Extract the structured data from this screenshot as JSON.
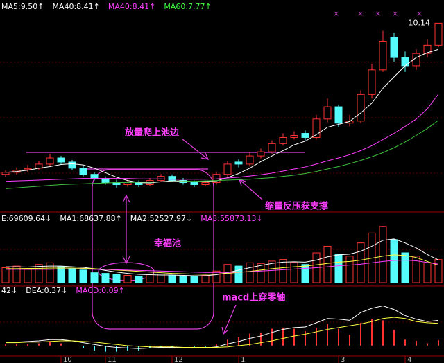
{
  "annotations": [
    "放量爬上池边",
    "缩量反压获支撑",
    "幸福池",
    "macd上穿零轴"
  ],
  "chart_data": [
    {
      "type": "candlestick",
      "up_color": "#ff3232",
      "down_color": "#54fcfc",
      "categories": [
        null,
        null,
        null,
        null,
        null,
        "10",
        null,
        null,
        null,
        "11",
        null,
        null,
        null,
        null,
        null,
        "12",
        null,
        null,
        null,
        null,
        null,
        "1",
        null,
        null,
        null,
        null,
        null,
        null,
        null,
        null,
        "3",
        null,
        null,
        null,
        null,
        null,
        "4",
        null,
        null,
        null
      ],
      "open": [
        6.45,
        6.5,
        6.58,
        6.6,
        6.7,
        6.85,
        6.75,
        6.6,
        6.45,
        6.35,
        6.25,
        6.2,
        6.25,
        6.2,
        6.3,
        6.4,
        6.3,
        6.25,
        6.2,
        6.25,
        6.45,
        6.75,
        6.7,
        6.9,
        7.0,
        7.2,
        7.35,
        7.45,
        7.35,
        7.8,
        8.1,
        7.7,
        7.75,
        8.4,
        9.0,
        9.8,
        9.3,
        9.1,
        9.4,
        9.6
      ],
      "high": [
        6.55,
        6.62,
        6.68,
        6.78,
        6.95,
        6.9,
        6.8,
        6.65,
        6.5,
        6.4,
        6.32,
        6.32,
        6.3,
        6.36,
        6.46,
        6.45,
        6.36,
        6.3,
        6.3,
        6.52,
        6.78,
        6.82,
        6.98,
        7.08,
        7.28,
        7.45,
        7.5,
        7.52,
        7.9,
        8.3,
        8.15,
        7.9,
        8.5,
        9.15,
        9.95,
        9.9,
        9.45,
        9.5,
        9.75,
        10.14
      ],
      "low": [
        6.38,
        6.44,
        6.5,
        6.55,
        6.65,
        6.7,
        6.55,
        6.4,
        6.3,
        6.2,
        6.12,
        6.15,
        6.14,
        6.16,
        6.26,
        6.26,
        6.2,
        6.14,
        6.16,
        6.2,
        6.4,
        6.62,
        6.64,
        6.84,
        6.95,
        7.15,
        7.3,
        7.28,
        7.3,
        7.72,
        7.6,
        7.62,
        7.7,
        8.3,
        8.95,
        9.2,
        8.95,
        9.0,
        9.3,
        9.55
      ],
      "close": [
        6.5,
        6.55,
        6.6,
        6.7,
        6.85,
        6.75,
        6.6,
        6.45,
        6.35,
        6.25,
        6.2,
        6.25,
        6.2,
        6.3,
        6.4,
        6.3,
        6.25,
        6.2,
        6.25,
        6.45,
        6.7,
        6.7,
        6.9,
        7.0,
        7.2,
        7.35,
        7.4,
        7.35,
        7.8,
        8.1,
        7.7,
        7.75,
        8.4,
        9.0,
        9.7,
        9.3,
        9.1,
        9.4,
        9.6,
        10.14
      ],
      "ylim": [
        5.6,
        10.4
      ],
      "legend": [
        {
          "text": "MA5:9.50↑",
          "color": "#ffffff"
        },
        {
          "text": "MA40:8.41↑",
          "color": "#ffffff"
        },
        {
          "text": "MA40:8.41↑",
          "color": "#ff40ff"
        },
        {
          "text": "MA60:7.77↑",
          "color": "#40ff40"
        }
      ],
      "series": [
        {
          "color": "#ffffff",
          "values": [
            6.5,
            6.52,
            6.55,
            6.6,
            6.64,
            6.69,
            6.71,
            6.68,
            6.6,
            6.49,
            6.38,
            6.3,
            6.25,
            6.24,
            6.27,
            6.29,
            6.29,
            6.27,
            6.28,
            6.29,
            6.37,
            6.47,
            6.6,
            6.76,
            6.9,
            7.03,
            7.17,
            7.26,
            7.42,
            7.6,
            7.67,
            7.74,
            7.95,
            8.19,
            8.55,
            8.83,
            9.1,
            9.3,
            9.42,
            9.5
          ]
        },
        {
          "color": "#ff40ff",
          "values": [
            6.28,
            6.29,
            6.3,
            6.31,
            6.32,
            6.33,
            6.34,
            6.35,
            6.35,
            6.35,
            6.35,
            6.35,
            6.34,
            6.34,
            6.34,
            6.33,
            6.33,
            6.33,
            6.33,
            6.34,
            6.36,
            6.38,
            6.41,
            6.44,
            6.48,
            6.53,
            6.58,
            6.63,
            6.7,
            6.78,
            6.85,
            6.93,
            7.03,
            7.15,
            7.3,
            7.45,
            7.62,
            7.8,
            8.05,
            8.41
          ]
        },
        {
          "color": "#40c040",
          "values": [
            6.1,
            6.12,
            6.14,
            6.16,
            6.18,
            6.2,
            6.21,
            6.22,
            6.23,
            6.24,
            6.25,
            6.25,
            6.26,
            6.26,
            6.27,
            6.27,
            6.28,
            6.28,
            6.29,
            6.3,
            6.31,
            6.32,
            6.33,
            6.35,
            6.37,
            6.4,
            6.43,
            6.47,
            6.52,
            6.58,
            6.64,
            6.71,
            6.79,
            6.88,
            6.98,
            7.1,
            7.24,
            7.4,
            7.57,
            7.77
          ]
        }
      ]
    },
    {
      "type": "bar",
      "ylim": [
        0,
        180000
      ],
      "values": [
        45000,
        50000,
        40000,
        55000,
        60000,
        48000,
        42000,
        38000,
        30000,
        28000,
        25000,
        22000,
        20000,
        24000,
        26000,
        22000,
        20000,
        18000,
        22000,
        35000,
        55000,
        50000,
        60000,
        58000,
        65000,
        70000,
        62000,
        55000,
        90000,
        110000,
        85000,
        80000,
        120000,
        150000,
        170000,
        130000,
        90000,
        80000,
        60000,
        69609.64
      ],
      "legend": [
        {
          "text": "E:69609.64↓",
          "color": "#ffffff"
        },
        {
          "text": "MA1:68637.88↑",
          "color": "#ffffff"
        },
        {
          "text": "MA2:52527.97↓",
          "color": "#ffffff"
        },
        {
          "text": "MA3:55873.13↓",
          "color": "#ff40ff"
        }
      ],
      "series": [
        {
          "color": "#ffffff",
          "values": [
            48000,
            48000,
            47000,
            49000,
            50000,
            50000,
            48000,
            46000,
            42000,
            37000,
            32000,
            28000,
            25000,
            24000,
            23000,
            23000,
            22000,
            21000,
            21000,
            24000,
            30000,
            38000,
            45000,
            52000,
            58000,
            62000,
            63000,
            62000,
            68000,
            78000,
            84000,
            86000,
            95000,
            110000,
            128000,
            132000,
            120000,
            105000,
            85000,
            68637.88
          ]
        },
        {
          "color": "#ffff40",
          "values": [
            42000,
            42000,
            43000,
            43000,
            44000,
            44000,
            44000,
            43000,
            42000,
            40000,
            38000,
            36000,
            34000,
            32000,
            30000,
            28000,
            27000,
            26000,
            25000,
            26000,
            28000,
            31000,
            34000,
            38000,
            42000,
            45000,
            48000,
            50000,
            54000,
            58000,
            62000,
            64000,
            68000,
            74000,
            80000,
            84000,
            82000,
            76000,
            64000,
            52527.97
          ]
        },
        {
          "color": "#ff40ff",
          "values": [
            40000,
            40000,
            40000,
            40000,
            40000,
            41000,
            41000,
            41000,
            40000,
            40000,
            39000,
            38000,
            37000,
            36000,
            35000,
            34000,
            33000,
            32000,
            31000,
            31000,
            31000,
            32000,
            33000,
            35000,
            37000,
            39000,
            41000,
            43000,
            45000,
            48000,
            51000,
            53000,
            56000,
            60000,
            64000,
            67000,
            68000,
            66000,
            61000,
            55873.13
          ]
        }
      ]
    },
    {
      "type": "line",
      "ylim": [
        -0.15,
        0.85
      ],
      "legend": [
        {
          "text": "42↓",
          "color": "#ffffff"
        },
        {
          "text": "DEA:0.37↓",
          "color": "#ffffff"
        },
        {
          "text": "MACD:0.09↑",
          "color": "#ff40ff"
        }
      ],
      "series": [
        {
          "color": "#ffffff",
          "values": [
            0.06,
            0.06,
            0.07,
            0.08,
            0.1,
            0.1,
            0.08,
            0.05,
            0.02,
            -0.01,
            -0.03,
            -0.04,
            -0.05,
            -0.04,
            -0.03,
            -0.03,
            -0.03,
            -0.04,
            -0.04,
            -0.02,
            0.03,
            0.07,
            0.12,
            0.16,
            0.22,
            0.27,
            0.3,
            0.31,
            0.38,
            0.45,
            0.44,
            0.42,
            0.55,
            0.62,
            0.66,
            0.6,
            0.5,
            0.44,
            0.4,
            0.42
          ]
        },
        {
          "color": "#ffff40",
          "values": [
            0.05,
            0.05,
            0.06,
            0.06,
            0.07,
            0.08,
            0.08,
            0.07,
            0.06,
            0.04,
            0.02,
            0.0,
            -0.01,
            -0.02,
            -0.02,
            -0.02,
            -0.03,
            -0.03,
            -0.03,
            -0.03,
            -0.02,
            0.0,
            0.02,
            0.05,
            0.08,
            0.12,
            0.16,
            0.19,
            0.23,
            0.27,
            0.3,
            0.33,
            0.36,
            0.4,
            0.45,
            0.47,
            0.45,
            0.4,
            0.38,
            0.37
          ]
        }
      ],
      "histogram": [
        0.02,
        0.02,
        0.02,
        0.04,
        0.06,
        0.04,
        0,
        -0.04,
        -0.08,
        -0.1,
        -0.1,
        -0.08,
        -0.08,
        -0.04,
        -0.02,
        -0.02,
        0,
        -0.02,
        -0.02,
        0.02,
        0.1,
        0.14,
        0.2,
        0.22,
        0.28,
        0.3,
        0.28,
        0.24,
        0.3,
        0.36,
        0.28,
        0.18,
        0.38,
        0.44,
        0.42,
        0.26,
        0.1,
        0.08,
        0.04,
        0.09
      ],
      "up_color": "#ff3232",
      "down_color": "#54fcfc"
    }
  ]
}
